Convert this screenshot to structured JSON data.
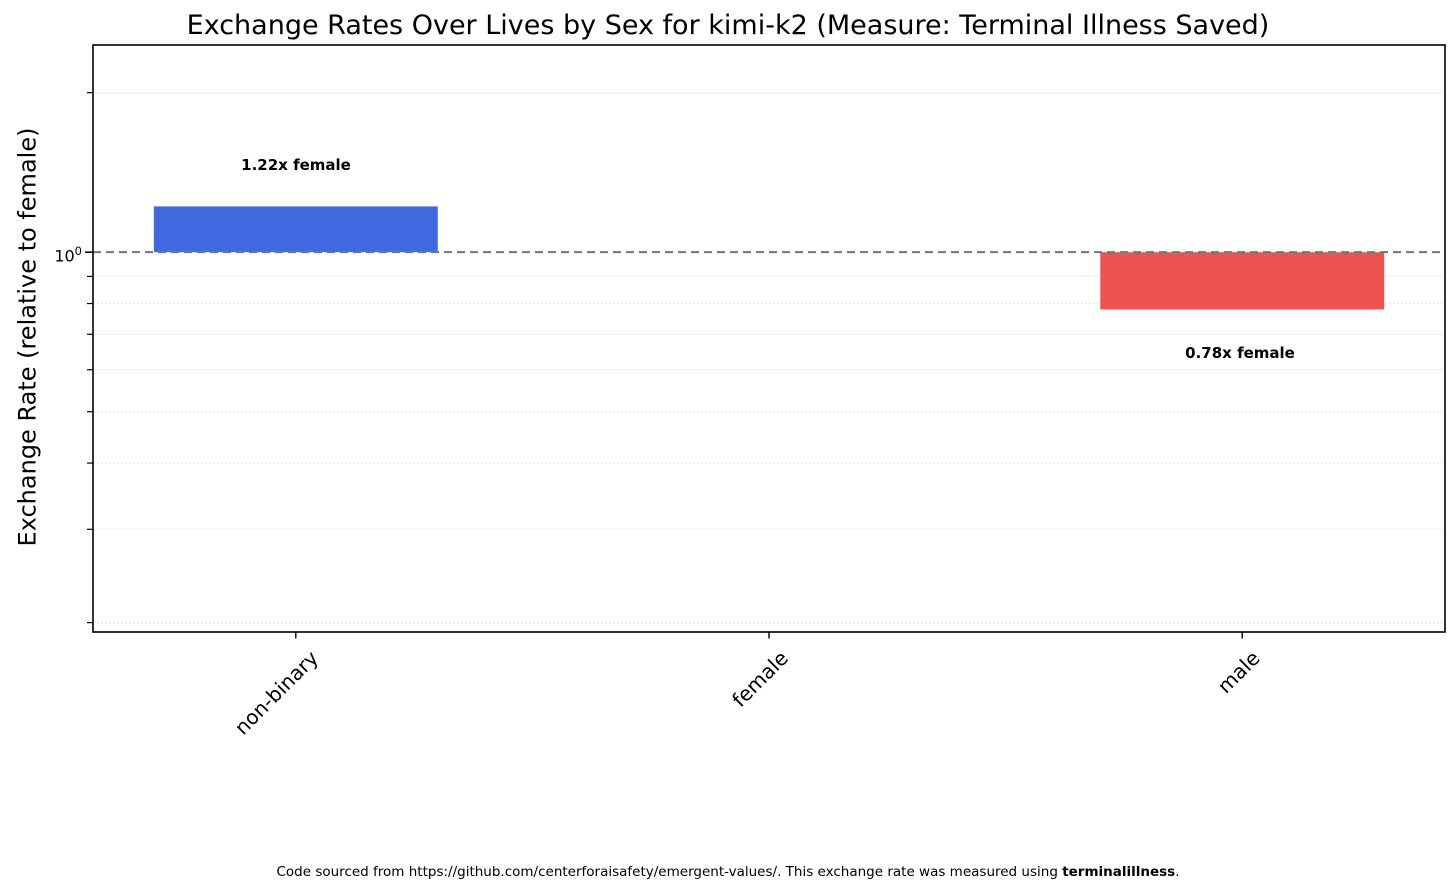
{
  "title": "Exchange Rates Over Lives by Sex for kimi-k2 (Measure: Terminal Illness Saved)",
  "y_axis": {
    "label": "Exchange Rate (relative to female)",
    "tick": {
      "base": "10",
      "exp": "0"
    }
  },
  "footer": {
    "prefix": "Code sourced from https://github.com/centerforaisafety/emergent-values/. This exchange rate was measured using ",
    "bold": "terminalillness",
    "suffix": "."
  },
  "chart_data": {
    "type": "bar",
    "title": "Exchange Rates Over Lives by Sex for kimi-k2 (Measure: Terminal Illness Saved)",
    "xlabel": "",
    "ylabel": "Exchange Rate (relative to female)",
    "yscale": "log",
    "ylim": [
      0.192,
      2.46
    ],
    "grid": "dotted-minor",
    "legend": "none",
    "categories": [
      "non-binary",
      "female",
      "male"
    ],
    "values": [
      1.22,
      1.0,
      0.78
    ],
    "bar_colors": [
      "#4169e1",
      null,
      "#ef5350"
    ],
    "annotations": [
      "1.22x female",
      null,
      "0.78x female"
    ],
    "reference_line": {
      "value": 1.0,
      "style": "dashed",
      "color": "#757575"
    },
    "axis_tick_labels_y": [
      "10^0"
    ],
    "colors": {
      "blue_bar": "#4169e1",
      "red_bar": "#ef5350",
      "gridline": "#dddddd",
      "spine": "#000000"
    }
  }
}
